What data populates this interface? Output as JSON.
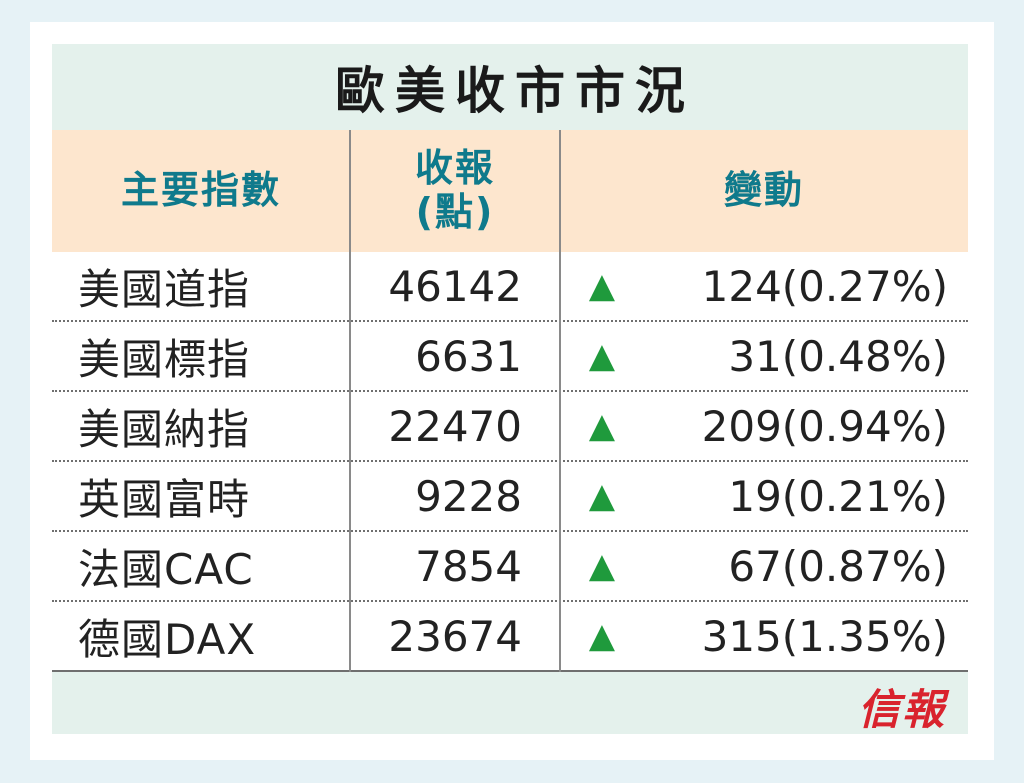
{
  "title": "歐美收市市況",
  "headers": {
    "index": "主要指數",
    "close_line1": "收報",
    "close_line2": "(點)",
    "change": "變動"
  },
  "rows": [
    {
      "name": "美國道指",
      "close": "46142",
      "direction": "up",
      "change": "124(0.27%)"
    },
    {
      "name": "美國標指",
      "close": "6631",
      "direction": "up",
      "change": "31(0.48%)"
    },
    {
      "name": "美國納指",
      "close": "22470",
      "direction": "up",
      "change": "209(0.94%)"
    },
    {
      "name": "英國富時",
      "close": "9228",
      "direction": "up",
      "change": "19(0.21%)"
    },
    {
      "name": "法國CAC",
      "close": "7854",
      "direction": "up",
      "change": "67(0.87%)"
    },
    {
      "name": "德國DAX",
      "close": "23674",
      "direction": "up",
      "change": "315(1.35%)"
    }
  ],
  "arrow_glyph": "▲",
  "colors": {
    "header_text": "#0f7a8c",
    "header_bg": "#fde6ce",
    "title_bg": "#e4f1ec",
    "up_arrow": "#1f9a3c",
    "logo": "#d9232d"
  },
  "logo_text": "信報"
}
